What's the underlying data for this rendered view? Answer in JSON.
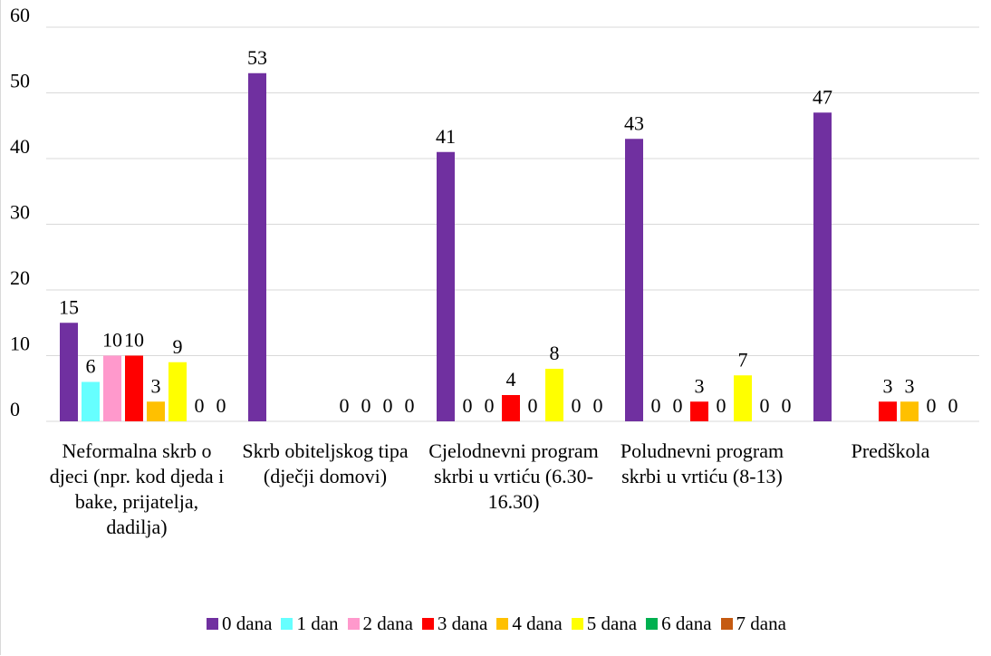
{
  "chart_data": {
    "type": "bar",
    "categories": [
      "Neformalna skrb o djeci (npr. kod djeda i bake, prijatelja, dadilja)",
      "Skrb obiteljskog tipa (dječji domovi)",
      "Cjelodnevni program skrbi u vrtiću (6.30-16.30)",
      "Poludnevni program skrbi u vrtiću (8-13)",
      "Predškola"
    ],
    "series": [
      {
        "name": "0 dana",
        "color": "#7030a0",
        "values": [
          15,
          53,
          41,
          43,
          47
        ]
      },
      {
        "name": "1 dan",
        "color": "#66ffff",
        "values": [
          6,
          null,
          0,
          0,
          null
        ]
      },
      {
        "name": "2 dana",
        "color": "#ff99cc",
        "values": [
          10,
          null,
          0,
          0,
          null
        ]
      },
      {
        "name": "3 dana",
        "color": "#ff0000",
        "values": [
          10,
          null,
          4,
          3,
          3
        ]
      },
      {
        "name": "4 dana",
        "color": "#ffc000",
        "values": [
          3,
          0,
          0,
          0,
          3
        ]
      },
      {
        "name": "5 dana",
        "color": "#ffff00",
        "values": [
          9,
          0,
          8,
          7,
          0
        ]
      },
      {
        "name": "6 dana",
        "color": "#00b050",
        "values": [
          0,
          0,
          0,
          0,
          0
        ]
      },
      {
        "name": "7 dana",
        "color": "#c55a11",
        "values": [
          0,
          0,
          0,
          0,
          null
        ]
      }
    ],
    "ylim": [
      0,
      60
    ],
    "yticks": [
      0,
      10,
      20,
      30,
      40,
      50,
      60
    ],
    "grid": true,
    "legend": "bottom"
  }
}
